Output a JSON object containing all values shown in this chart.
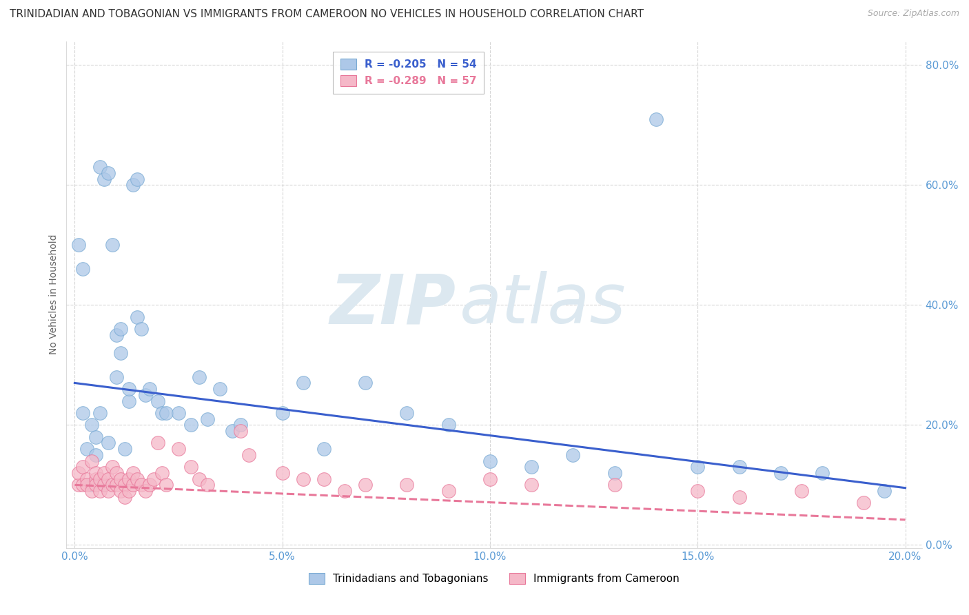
{
  "title": "TRINIDADIAN AND TOBAGONIAN VS IMMIGRANTS FROM CAMEROON NO VEHICLES IN HOUSEHOLD CORRELATION CHART",
  "source": "Source: ZipAtlas.com",
  "xlabel_vals": [
    0.0,
    0.05,
    0.1,
    0.15,
    0.2
  ],
  "ylabel_vals": [
    0.0,
    0.2,
    0.4,
    0.6,
    0.8
  ],
  "ylabel_label": "No Vehicles in Household",
  "series1_label": "Trinidadians and Tobagonians",
  "series1_R": -0.205,
  "series1_N": 54,
  "series1_color": "#adc8e8",
  "series1_edge": "#7aabd4",
  "series2_label": "Immigrants from Cameroon",
  "series2_R": -0.289,
  "series2_N": 57,
  "series2_color": "#f5b8c8",
  "series2_edge": "#e8789a",
  "background_color": "#ffffff",
  "watermark_zip": "ZIP",
  "watermark_atlas": "atlas",
  "watermark_color": "#dce8f0",
  "title_fontsize": 11,
  "source_fontsize": 9,
  "axis_label_fontsize": 10,
  "tick_fontsize": 11,
  "legend_fontsize": 11,
  "series1_x": [
    0.001,
    0.002,
    0.002,
    0.003,
    0.004,
    0.004,
    0.005,
    0.005,
    0.006,
    0.006,
    0.007,
    0.007,
    0.008,
    0.008,
    0.009,
    0.01,
    0.01,
    0.011,
    0.011,
    0.012,
    0.013,
    0.013,
    0.014,
    0.015,
    0.015,
    0.016,
    0.017,
    0.018,
    0.02,
    0.021,
    0.022,
    0.025,
    0.028,
    0.03,
    0.032,
    0.035,
    0.038,
    0.04,
    0.05,
    0.055,
    0.06,
    0.07,
    0.08,
    0.09,
    0.1,
    0.11,
    0.12,
    0.13,
    0.14,
    0.15,
    0.16,
    0.17,
    0.18,
    0.195
  ],
  "series1_y": [
    0.5,
    0.46,
    0.22,
    0.16,
    0.2,
    0.1,
    0.18,
    0.15,
    0.22,
    0.63,
    0.61,
    0.1,
    0.62,
    0.17,
    0.5,
    0.28,
    0.35,
    0.32,
    0.36,
    0.16,
    0.24,
    0.26,
    0.6,
    0.38,
    0.61,
    0.36,
    0.25,
    0.26,
    0.24,
    0.22,
    0.22,
    0.22,
    0.2,
    0.28,
    0.21,
    0.26,
    0.19,
    0.2,
    0.22,
    0.27,
    0.16,
    0.27,
    0.22,
    0.2,
    0.14,
    0.13,
    0.15,
    0.12,
    0.71,
    0.13,
    0.13,
    0.12,
    0.12,
    0.09
  ],
  "series2_x": [
    0.001,
    0.001,
    0.002,
    0.002,
    0.003,
    0.003,
    0.004,
    0.004,
    0.005,
    0.005,
    0.005,
    0.006,
    0.006,
    0.007,
    0.007,
    0.008,
    0.008,
    0.009,
    0.009,
    0.01,
    0.01,
    0.011,
    0.011,
    0.012,
    0.012,
    0.013,
    0.013,
    0.014,
    0.014,
    0.015,
    0.016,
    0.017,
    0.018,
    0.019,
    0.02,
    0.021,
    0.022,
    0.025,
    0.028,
    0.03,
    0.032,
    0.04,
    0.042,
    0.05,
    0.055,
    0.06,
    0.065,
    0.07,
    0.08,
    0.09,
    0.1,
    0.11,
    0.13,
    0.15,
    0.16,
    0.175,
    0.19
  ],
  "series2_y": [
    0.1,
    0.12,
    0.1,
    0.13,
    0.11,
    0.1,
    0.09,
    0.14,
    0.11,
    0.1,
    0.12,
    0.09,
    0.11,
    0.1,
    0.12,
    0.09,
    0.11,
    0.1,
    0.13,
    0.1,
    0.12,
    0.09,
    0.11,
    0.1,
    0.08,
    0.11,
    0.09,
    0.1,
    0.12,
    0.11,
    0.1,
    0.09,
    0.1,
    0.11,
    0.17,
    0.12,
    0.1,
    0.16,
    0.13,
    0.11,
    0.1,
    0.19,
    0.15,
    0.12,
    0.11,
    0.11,
    0.09,
    0.1,
    0.1,
    0.09,
    0.11,
    0.1,
    0.1,
    0.09,
    0.08,
    0.09,
    0.07
  ],
  "grid_color": "#cccccc",
  "trend1_color": "#3a5fcd",
  "trend2_color": "#e8789a",
  "trend1_y0": 0.27,
  "trend1_y1": 0.095,
  "trend2_y0": 0.1,
  "trend2_y1": 0.042,
  "xlim": [
    -0.002,
    0.204
  ],
  "ylim": [
    -0.005,
    0.84
  ]
}
